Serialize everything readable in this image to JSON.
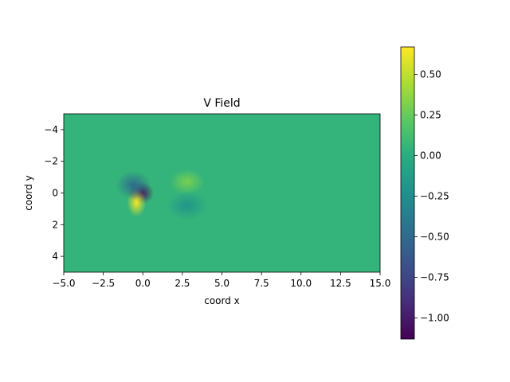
{
  "chart_data": {
    "type": "heatmap",
    "title": "V Field",
    "xlabel": "coord x",
    "ylabel": "coord y",
    "xlim": [
      -5,
      15
    ],
    "ylim": [
      5,
      -5
    ],
    "y_inverted": true,
    "x_ticks": [
      {
        "value": -5.0,
        "label": "−5.0"
      },
      {
        "value": -2.5,
        "label": "−2.5"
      },
      {
        "value": 0.0,
        "label": "0.0"
      },
      {
        "value": 2.5,
        "label": "2.5"
      },
      {
        "value": 5.0,
        "label": "5.0"
      },
      {
        "value": 7.5,
        "label": "7.5"
      },
      {
        "value": 10.0,
        "label": "10.0"
      },
      {
        "value": 12.5,
        "label": "12.5"
      },
      {
        "value": 15.0,
        "label": "15.0"
      }
    ],
    "y_ticks": [
      {
        "value": -4,
        "label": "−4"
      },
      {
        "value": -2,
        "label": "−2"
      },
      {
        "value": 0,
        "label": "0"
      },
      {
        "value": 2,
        "label": "2"
      },
      {
        "value": 4,
        "label": "4"
      }
    ],
    "colormap": "viridis",
    "colorbar": {
      "min": -1.13,
      "max": 0.67,
      "ticks": [
        {
          "value": 0.5,
          "label": "0.50"
        },
        {
          "value": 0.25,
          "label": "0.25"
        },
        {
          "value": 0.0,
          "label": "0.00"
        },
        {
          "value": -0.25,
          "label": "−0.25"
        },
        {
          "value": -0.5,
          "label": "−0.50"
        },
        {
          "value": -0.75,
          "label": "−0.75"
        },
        {
          "value": -1.0,
          "label": "−1.00"
        }
      ]
    },
    "background_value": 0.05,
    "features": [
      {
        "x": -0.1,
        "y": 0.0,
        "value": -1.1
      },
      {
        "x": -0.4,
        "y": 0.6,
        "value": 0.65
      },
      {
        "x": -0.6,
        "y": -0.5,
        "value": -0.5
      },
      {
        "x": 2.8,
        "y": -0.7,
        "value": 0.3
      },
      {
        "x": 2.8,
        "y": 0.8,
        "value": -0.2
      }
    ]
  }
}
